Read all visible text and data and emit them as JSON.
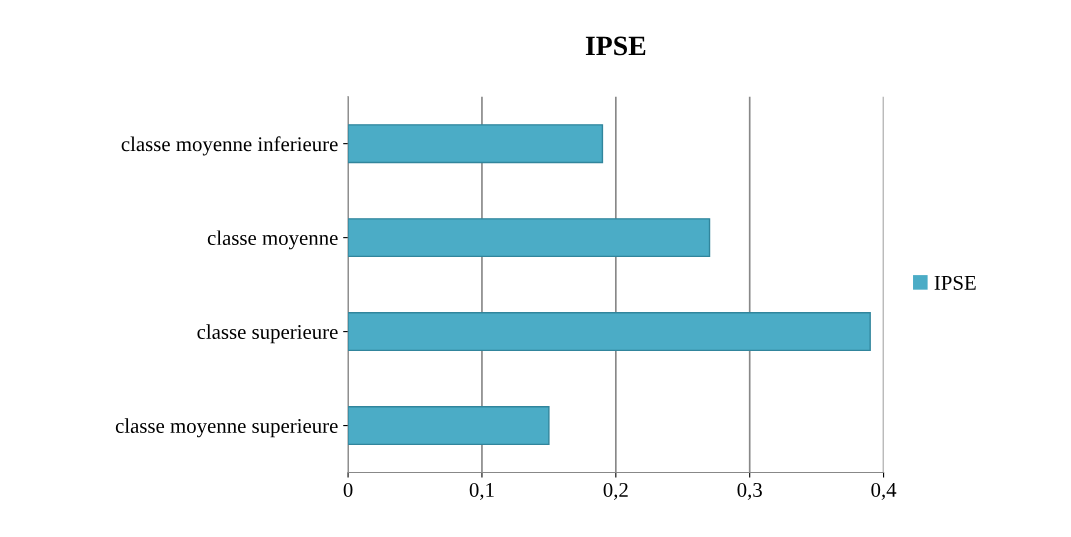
{
  "chart_data": {
    "type": "bar",
    "orientation": "horizontal",
    "title": "IPSE",
    "categories": [
      "classe moyenne inferieure",
      "classe moyenne",
      "classe superieure",
      "classe moyenne superieure"
    ],
    "series": [
      {
        "name": "IPSE",
        "color": "#4bacc6",
        "values": [
          0.19,
          0.27,
          0.39,
          0.15
        ]
      }
    ],
    "xlim": [
      0,
      0.4
    ],
    "xticks": [
      {
        "value": 0,
        "label": "0"
      },
      {
        "value": 0.1,
        "label": "0,1"
      },
      {
        "value": 0.2,
        "label": "0,2"
      },
      {
        "value": 0.3,
        "label": "0,3"
      },
      {
        "value": 0.4,
        "label": "0,4"
      }
    ],
    "grid": "x",
    "legend": "right"
  }
}
